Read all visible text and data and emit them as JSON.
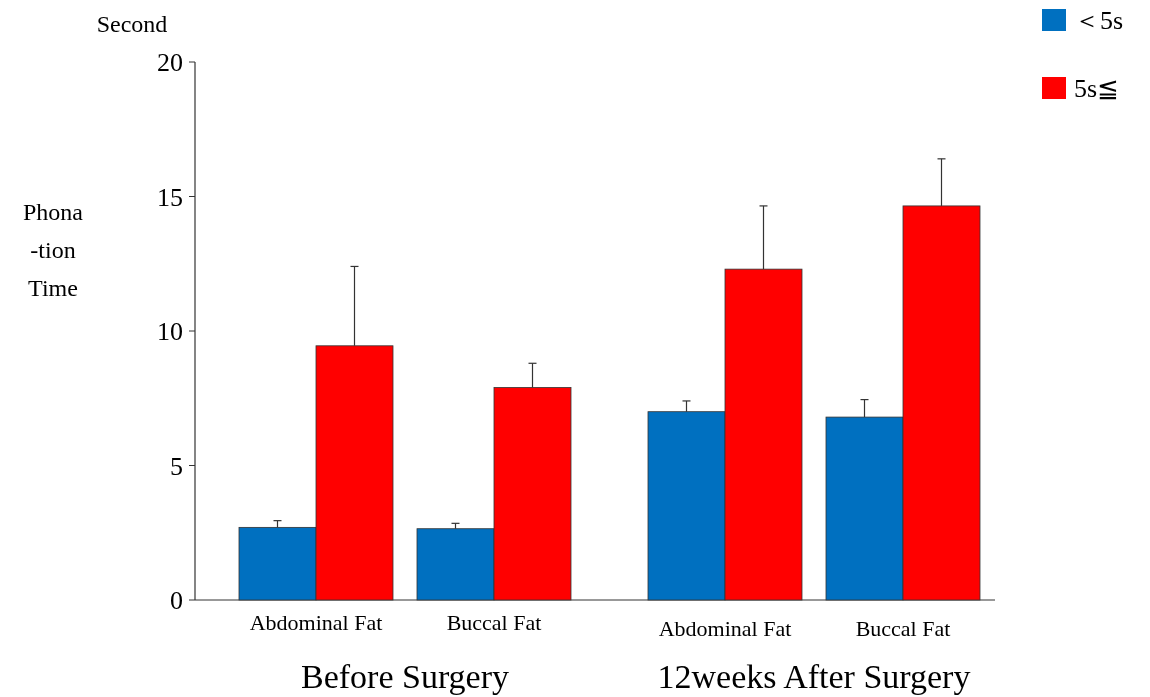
{
  "chart_data": {
    "type": "bar",
    "ylabel": "Phona\n-tion\nTime",
    "categories": [
      "Abdominal Fat",
      "Buccal Fat",
      "Abdominal Fat",
      "Buccal Fat"
    ],
    "series": [
      {
        "name": "＜5s",
        "color": "#0070c0",
        "values": [
          2.7,
          2.65,
          7.0,
          6.8
        ],
        "errors": [
          [
            2.7,
            2.95
          ],
          [
            2.65,
            2.85
          ],
          [
            7.0,
            7.4
          ],
          [
            6.8,
            7.45
          ]
        ]
      },
      {
        "name": "5s≦",
        "color": "#ff0000",
        "values": [
          9.45,
          7.9,
          12.3,
          14.65
        ],
        "errors": [
          [
            9.45,
            12.4
          ],
          [
            7.9,
            8.8
          ],
          [
            12.3,
            14.65
          ],
          [
            14.65,
            16.4
          ]
        ]
      }
    ],
    "ylim": [
      0,
      20
    ],
    "yticks": [
      0,
      5,
      10,
      15,
      20
    ],
    "grid": false,
    "legend": "top right",
    "annotations": [
      "Second",
      "Before Surgery",
      "12weeks After Surgery"
    ]
  }
}
